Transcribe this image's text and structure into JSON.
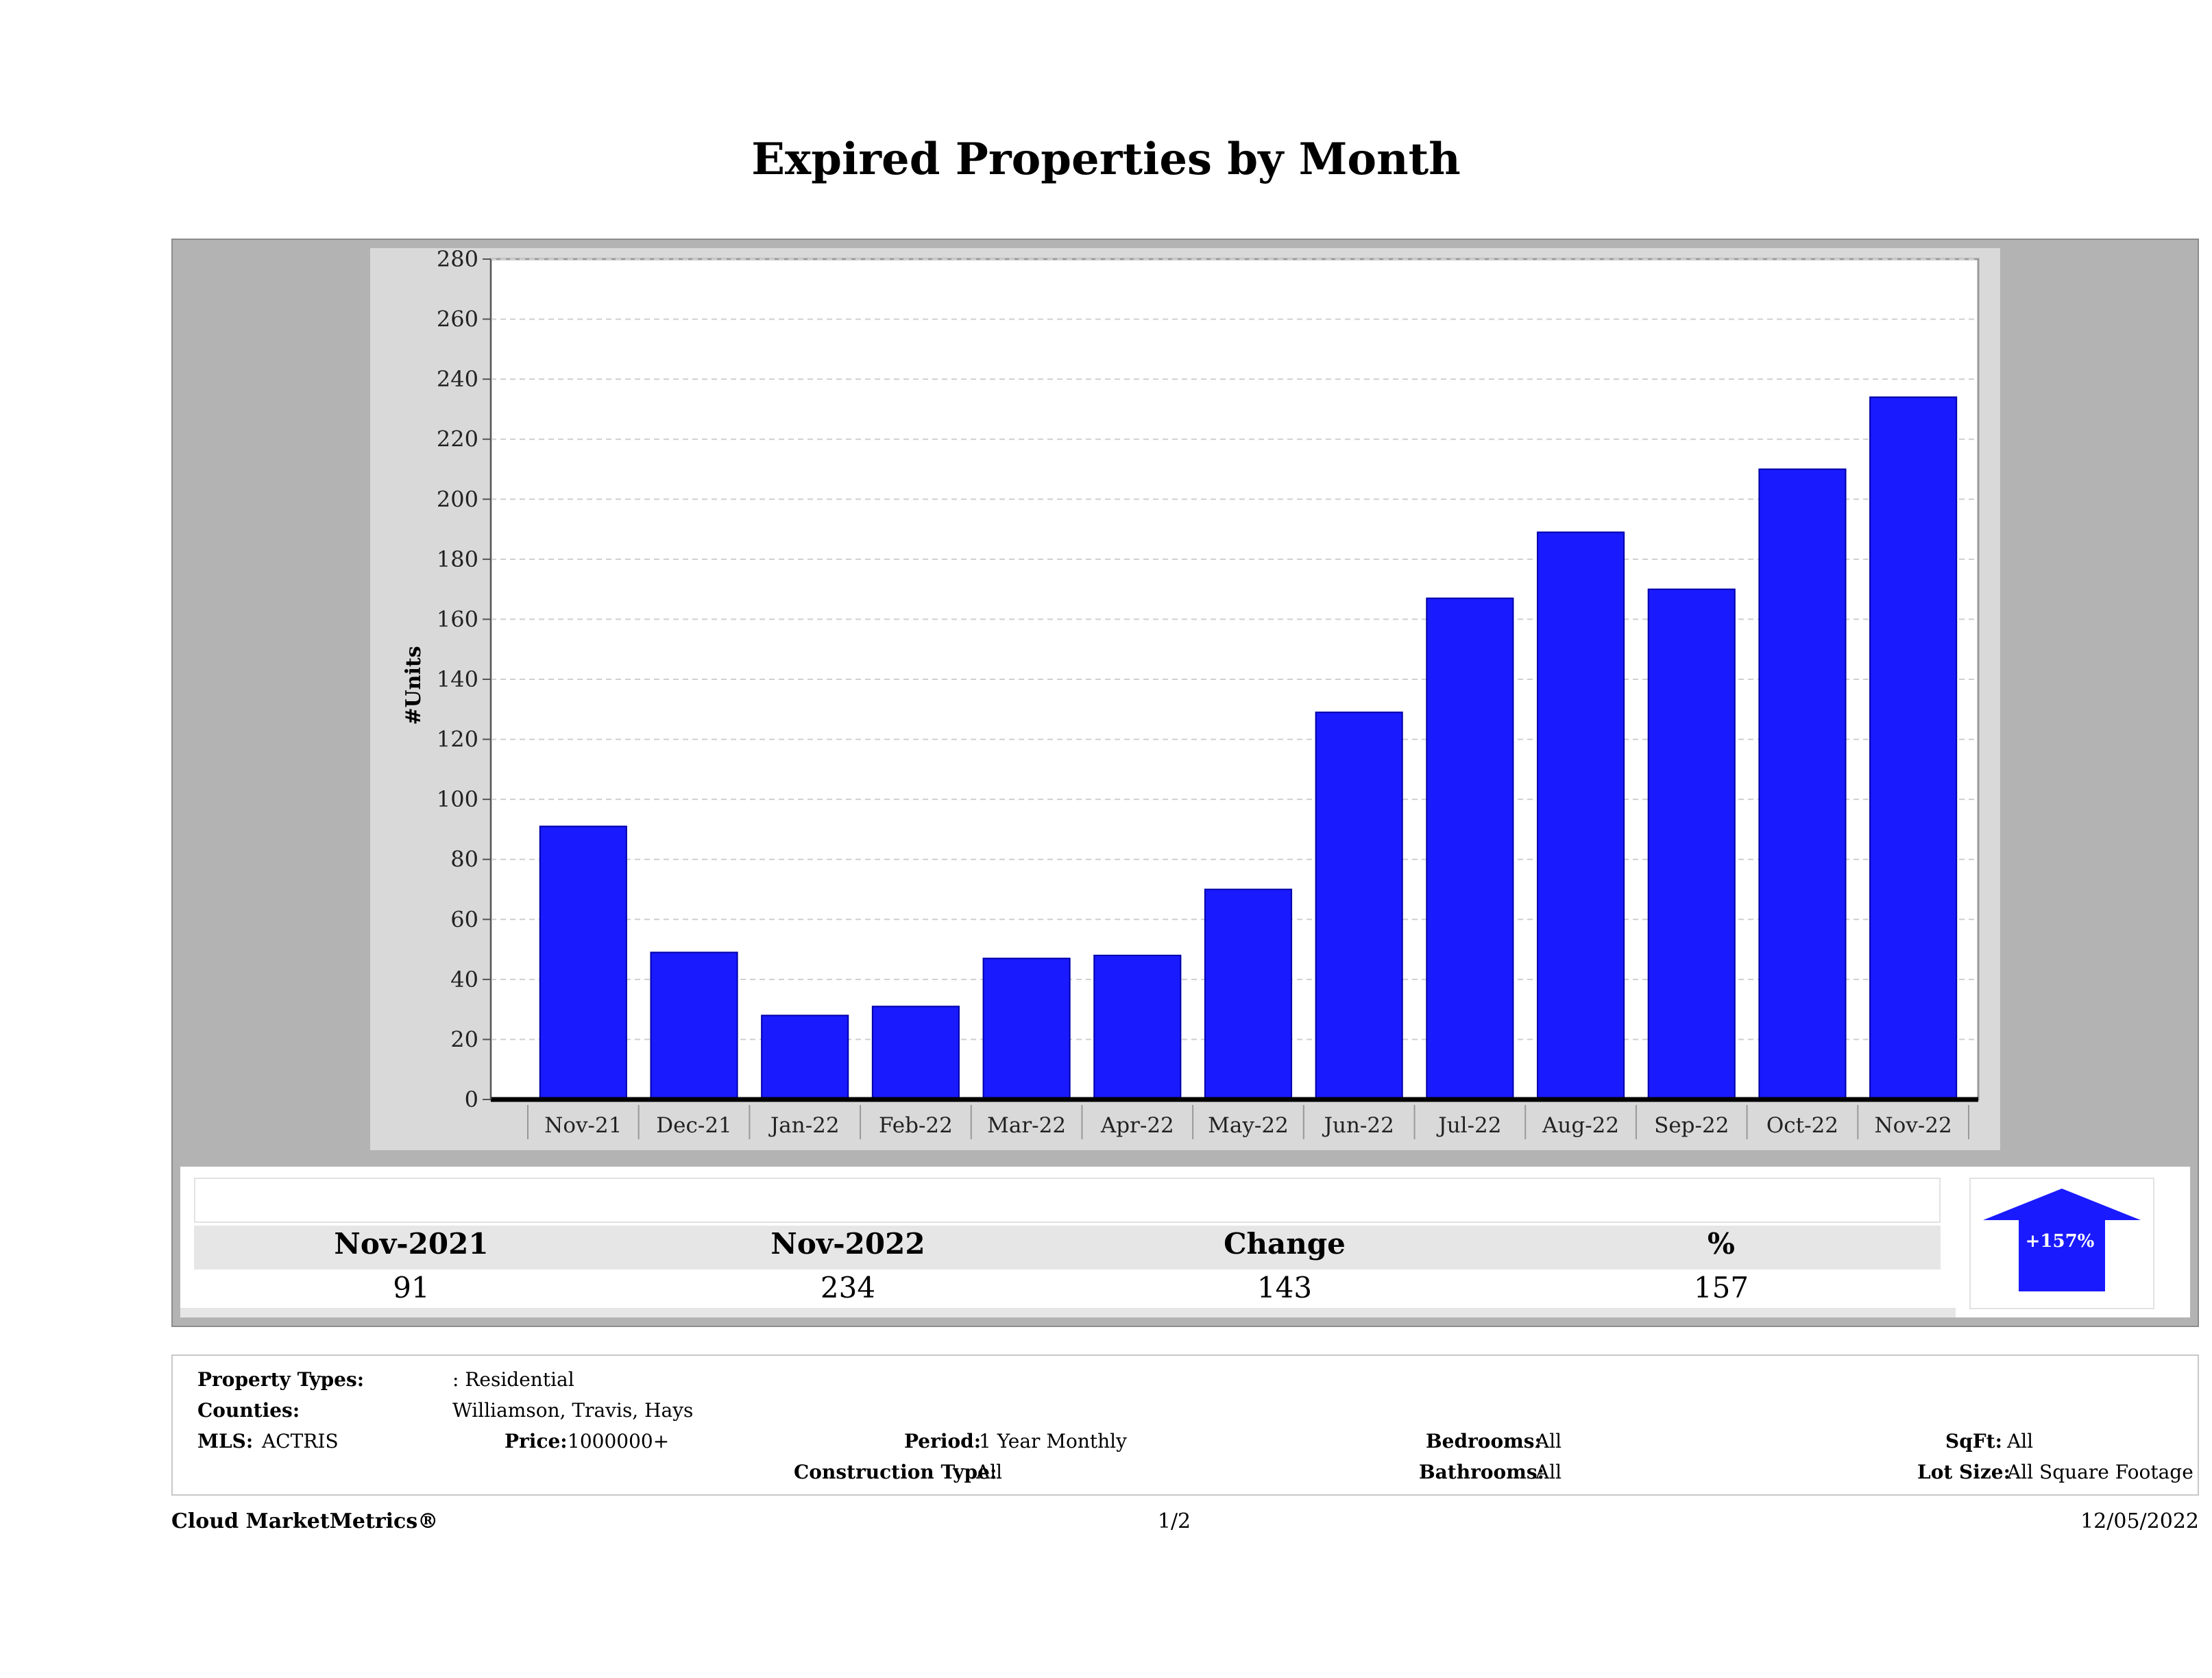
{
  "title": "Expired Properties by Month",
  "chart_data": {
    "type": "bar",
    "categories": [
      "Nov-21",
      "Dec-21",
      "Jan-22",
      "Feb-22",
      "Mar-22",
      "Apr-22",
      "May-22",
      "Jun-22",
      "Jul-22",
      "Aug-22",
      "Sep-22",
      "Oct-22",
      "Nov-22"
    ],
    "values": [
      91,
      49,
      28,
      31,
      47,
      48,
      70,
      129,
      167,
      189,
      170,
      210,
      234
    ],
    "ylabel": "#Units",
    "xlabel": "",
    "ylim": [
      0,
      280
    ],
    "yticks": [
      0,
      20,
      40,
      60,
      80,
      100,
      120,
      140,
      160,
      180,
      200,
      220,
      240,
      260,
      280
    ],
    "bar_color": "#1a1aff",
    "grid": true
  },
  "summary": {
    "headers": [
      "Nov-2021",
      "Nov-2022",
      "Change",
      "%"
    ],
    "values": [
      "91",
      "234",
      "143",
      "157"
    ],
    "badge": "+157%",
    "badge_icon": "up-arrow-icon",
    "badge_color": "#1a1aff"
  },
  "filters": {
    "property_types_label": "Property Types:",
    "property_types_value": ": Residential",
    "counties_label": "Counties:",
    "counties_value": "Williamson, Travis, Hays",
    "mls_label": "MLS:",
    "mls_value": "ACTRIS",
    "price_label": "Price:",
    "price_value": "1000000+",
    "period_label": "Period:",
    "period_value": "1 Year Monthly",
    "construction_label": "Construction Type:",
    "construction_value": "All",
    "bedrooms_label": "Bedrooms:",
    "bedrooms_value": "All",
    "bathrooms_label": "Bathrooms:",
    "bathrooms_value": "All",
    "sqft_label": "SqFt:",
    "sqft_value": "All",
    "lotsize_label": "Lot Size:",
    "lotsize_value": "All Square Footage"
  },
  "footer": {
    "brand": "Cloud MarketMetrics®",
    "page": "1/2",
    "date": "12/05/2022"
  }
}
